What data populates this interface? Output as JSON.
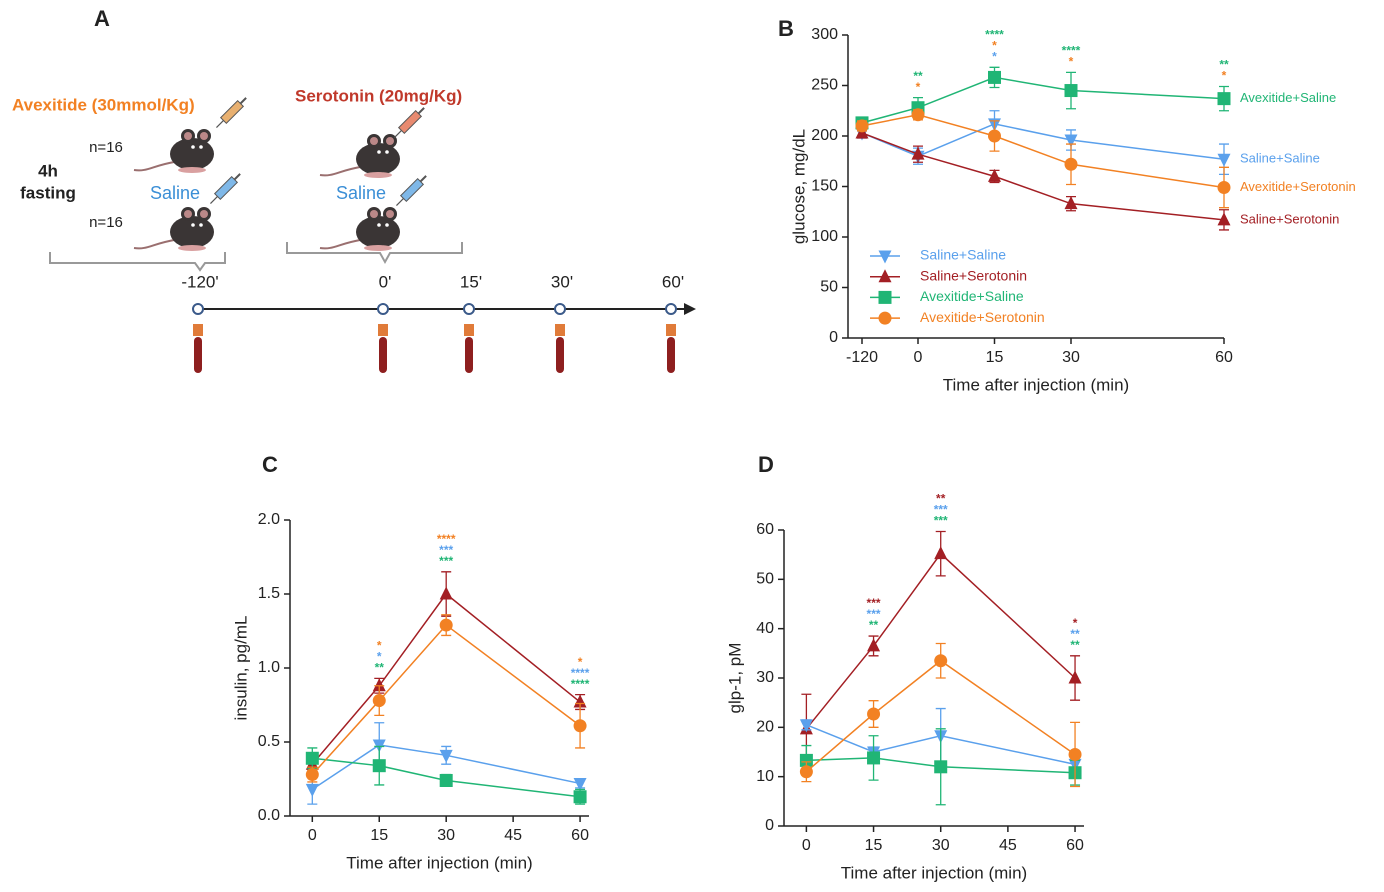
{
  "diagram": {
    "panel_label": "A",
    "avexitide": "Avexitide (30mmol/Kg)",
    "serotonin": "Serotonin (20mg/Kg)",
    "saline": [
      "Saline",
      "Saline"
    ],
    "n": [
      "n=16",
      "n=16"
    ],
    "fasting": [
      "4h",
      "fasting"
    ],
    "timeline": [
      "-120'",
      "0'",
      "15'",
      "30'",
      "60'"
    ]
  },
  "chart_data": [
    {
      "type": "line",
      "panel_label": "B",
      "x_label": "Time after injection (min)",
      "y_label": "glucose, mg/dL",
      "x": [
        -120,
        0,
        15,
        30,
        60
      ],
      "xlim": [
        -120,
        60
      ],
      "xticks": [
        -120,
        0,
        15,
        30,
        60
      ],
      "ylim": [
        0,
        300
      ],
      "yticks": [
        0,
        50,
        100,
        150,
        200,
        250,
        300
      ],
      "legend": "lower left",
      "end_labels": true,
      "series": [
        {
          "name": "Saline+Saline",
          "color": "#5aa0ec",
          "marker": "triangle-down",
          "values": [
            203,
            180,
            212,
            196,
            177
          ],
          "errors": [
            5,
            8,
            13,
            10,
            15
          ]
        },
        {
          "name": "Saline+Serotonin",
          "color": "#a31f24",
          "marker": "triangle-up",
          "values": [
            203,
            182,
            160,
            133,
            117
          ],
          "errors": [
            5,
            8,
            6,
            7,
            10
          ]
        },
        {
          "name": "Avexitide+Saline",
          "color": "#20b575",
          "marker": "square",
          "values": [
            213,
            228,
            258,
            245,
            237
          ],
          "errors": [
            5,
            10,
            10,
            18,
            12
          ]
        },
        {
          "name": "Avexitide+Serotonin",
          "color": "#f28123",
          "marker": "circle",
          "values": [
            210,
            221,
            200,
            172,
            149
          ],
          "errors": [
            5,
            5,
            15,
            20,
            20
          ]
        }
      ],
      "annotations": [
        {
          "x": 0,
          "stars": [
            {
              "text": "**",
              "color": "#20b575"
            },
            {
              "text": "*",
              "color": "#f28123"
            }
          ]
        },
        {
          "x": 15,
          "stars": [
            {
              "text": "****",
              "color": "#20b575"
            },
            {
              "text": "*",
              "color": "#f28123"
            },
            {
              "text": "*",
              "color": "#5aa0ec"
            }
          ]
        },
        {
          "x": 30,
          "stars": [
            {
              "text": "****",
              "color": "#20b575"
            },
            {
              "text": "*",
              "color": "#f28123"
            }
          ]
        },
        {
          "x": 60,
          "stars": [
            {
              "text": "**",
              "color": "#20b575"
            },
            {
              "text": "*",
              "color": "#f28123"
            }
          ]
        }
      ]
    },
    {
      "type": "line",
      "panel_label": "C",
      "x_label": "Time after injection (min)",
      "y_label": "insulin, pg/mL",
      "x": [
        0,
        15,
        30,
        60
      ],
      "xlim": [
        -5,
        62
      ],
      "xticks": [
        0,
        15,
        30,
        45,
        60
      ],
      "ylim": [
        0,
        2
      ],
      "yticks": [
        {
          "value": 0,
          "label": "0.0"
        },
        {
          "value": 0.5,
          "label": "0.5"
        },
        {
          "value": 1,
          "label": "1.0"
        },
        {
          "value": 1.5,
          "label": "1.5"
        },
        {
          "value": 2,
          "label": "2.0"
        }
      ],
      "series": [
        {
          "color": "#5aa0ec",
          "marker": "triangle-down",
          "values": [
            0.18,
            0.48,
            0.41,
            0.22
          ],
          "errors": [
            0.1,
            0.15,
            0.06,
            0.03
          ]
        },
        {
          "color": "#a31f24",
          "marker": "triangle-up",
          "values": [
            0.35,
            0.88,
            1.5,
            0.77
          ],
          "errors": [
            0.04,
            0.05,
            0.15,
            0.05
          ]
        },
        {
          "color": "#20b575",
          "marker": "square",
          "values": [
            0.39,
            0.34,
            0.24,
            0.13
          ],
          "errors": [
            0.07,
            0.13,
            0.04,
            0.05
          ]
        },
        {
          "color": "#f28123",
          "marker": "circle",
          "values": [
            0.28,
            0.78,
            1.29,
            0.61
          ],
          "errors": [
            0.05,
            0.1,
            0.07,
            0.15
          ]
        }
      ],
      "annotations": [
        {
          "x": 15,
          "stars": [
            {
              "text": "*",
              "color": "#f28123"
            },
            {
              "text": "*",
              "color": "#5aa0ec"
            },
            {
              "text": "**",
              "color": "#20b575"
            }
          ]
        },
        {
          "x": 30,
          "stars": [
            {
              "text": "****",
              "color": "#f28123"
            },
            {
              "text": "***",
              "color": "#5aa0ec"
            },
            {
              "text": "***",
              "color": "#20b575"
            }
          ]
        },
        {
          "x": 60,
          "stars": [
            {
              "text": "*",
              "color": "#f28123"
            },
            {
              "text": "****",
              "color": "#5aa0ec"
            },
            {
              "text": "****",
              "color": "#20b575"
            }
          ]
        }
      ]
    },
    {
      "type": "line",
      "panel_label": "D",
      "x_label": "Time after injection (min)",
      "y_label": "glp-1, pM",
      "x": [
        0,
        15,
        30,
        60
      ],
      "xlim": [
        -5,
        62
      ],
      "xticks": [
        0,
        15,
        30,
        45,
        60
      ],
      "ylim": [
        0,
        60
      ],
      "yticks": [
        0,
        10,
        20,
        30,
        40,
        50,
        60
      ],
      "series": [
        {
          "color": "#a31f24",
          "marker": "triangle-up",
          "values": [
            19.7,
            36.5,
            55.2,
            30
          ],
          "errors": [
            7,
            2,
            4.5,
            4.5
          ]
        },
        {
          "color": "#5aa0ec",
          "marker": "triangle-down",
          "values": [
            20.5,
            15,
            18.3,
            12.5
          ],
          "errors": [
            1,
            1,
            5.5,
            1
          ]
        },
        {
          "color": "#20b575",
          "marker": "square",
          "values": [
            13.3,
            13.8,
            12,
            10.8
          ],
          "errors": [
            3,
            4.5,
            7.7,
            2.5
          ]
        },
        {
          "color": "#f28123",
          "marker": "circle",
          "values": [
            11,
            22.7,
            33.5,
            14.5
          ],
          "errors": [
            2,
            2.7,
            3.5,
            6.5
          ]
        }
      ],
      "annotations": [
        {
          "x": 15,
          "stars": [
            {
              "text": "***",
              "color": "#a31f24"
            },
            {
              "text": "***",
              "color": "#5aa0ec"
            },
            {
              "text": "**",
              "color": "#20b575"
            }
          ]
        },
        {
          "x": 30,
          "stars": [
            {
              "text": "**",
              "color": "#a31f24"
            },
            {
              "text": "***",
              "color": "#5aa0ec"
            },
            {
              "text": "***",
              "color": "#20b575"
            }
          ]
        },
        {
          "x": 60,
          "stars": [
            {
              "text": "*",
              "color": "#a31f24"
            },
            {
              "text": "**",
              "color": "#5aa0ec"
            },
            {
              "text": "**",
              "color": "#20b575"
            }
          ]
        }
      ]
    }
  ]
}
